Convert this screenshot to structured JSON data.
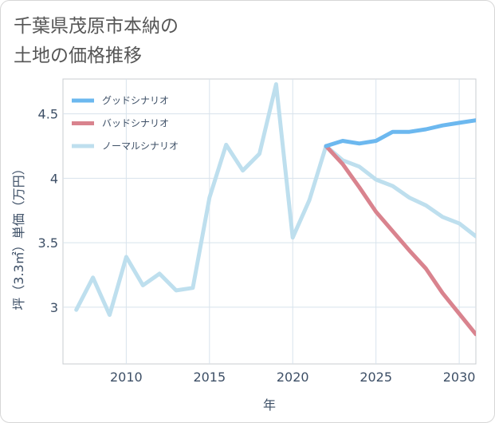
{
  "title": {
    "line1": "千葉県茂原市本納の",
    "line2": "土地の価格推移"
  },
  "chart_data": {
    "type": "line",
    "xlabel": "年",
    "ylabel": "坪（3.3㎡）単価（万円）",
    "xlim": [
      2006.2,
      2031
    ],
    "ylim": [
      2.56,
      4.77
    ],
    "x_ticks": [
      2010,
      2015,
      2020,
      2025,
      2030
    ],
    "y_ticks": [
      3,
      3.5,
      4,
      4.5
    ],
    "x_tick_labels": [
      "2010",
      "2015",
      "2020",
      "2025",
      "2030"
    ],
    "y_tick_labels": [
      "3",
      "3.5",
      "4",
      "4.5"
    ],
    "grid": true,
    "legend_position": "top-left",
    "series": [
      {
        "name": "グッドシナリオ",
        "color": "#6cb8ef",
        "x": [
          2022,
          2023,
          2024,
          2025,
          2026,
          2027,
          2028,
          2029,
          2030,
          2031
        ],
        "y": [
          4.25,
          4.29,
          4.27,
          4.29,
          4.36,
          4.36,
          4.38,
          4.41,
          4.43,
          4.45
        ]
      },
      {
        "name": "バッドシナリオ",
        "color": "#d9838e",
        "x": [
          2022,
          2023,
          2024,
          2025,
          2026,
          2027,
          2028,
          2029,
          2030,
          2031
        ],
        "y": [
          4.25,
          4.11,
          3.93,
          3.74,
          3.59,
          3.44,
          3.3,
          3.11,
          2.95,
          2.79
        ]
      },
      {
        "name": "ノーマルシナリオ",
        "color": "#bedfee",
        "x": [
          2007,
          2008,
          2009,
          2010,
          2011,
          2012,
          2013,
          2014,
          2015,
          2016,
          2017,
          2018,
          2019,
          2020,
          2021,
          2022,
          2023,
          2024,
          2025,
          2026,
          2027,
          2028,
          2029,
          2030,
          2031
        ],
        "y": [
          2.98,
          3.23,
          2.94,
          3.39,
          3.17,
          3.26,
          3.13,
          3.15,
          3.85,
          4.26,
          4.06,
          4.19,
          4.73,
          3.54,
          3.83,
          4.25,
          4.14,
          4.09,
          3.99,
          3.94,
          3.85,
          3.79,
          3.7,
          3.65,
          3.55
        ]
      }
    ]
  }
}
